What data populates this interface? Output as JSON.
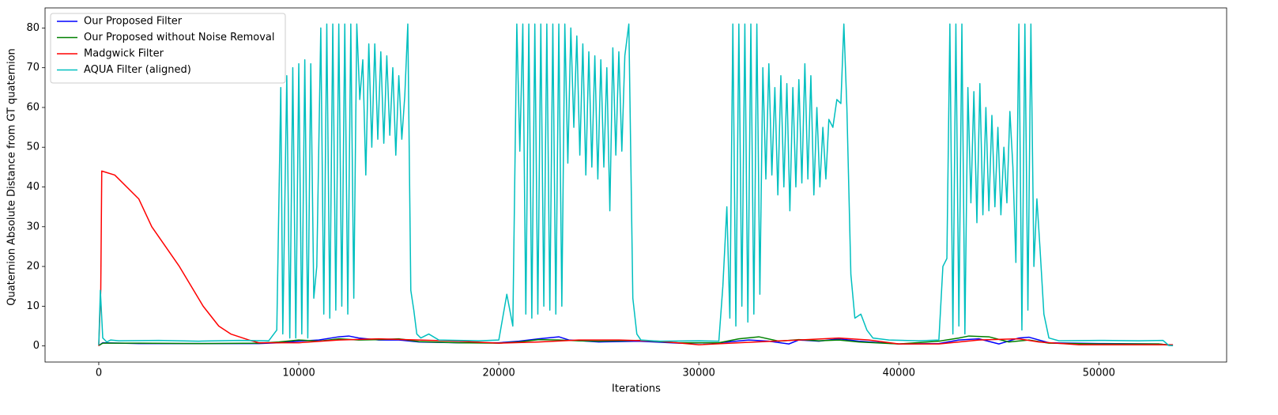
{
  "chart_data": {
    "type": "line",
    "xlabel": "Iterations",
    "ylabel": "Quaternion Absolute Distance from GT quaternion",
    "xlim": [
      -2685,
      56385
    ],
    "ylim": [
      -4.05,
      85.05
    ],
    "xticks": [
      0,
      10000,
      20000,
      30000,
      40000,
      50000
    ],
    "yticks": [
      0,
      10,
      20,
      30,
      40,
      50,
      60,
      70,
      80
    ],
    "legend": "upper-left",
    "series": [
      {
        "name": "Our Proposed Filter",
        "color": "#0000ff",
        "x": [
          0,
          200,
          2000,
          5000,
          8000,
          9000,
          10000,
          11000,
          12000,
          12500,
          13000,
          14000,
          15000,
          16000,
          18000,
          20000,
          21000,
          22000,
          23000,
          23500,
          25000,
          27000,
          29000,
          31000,
          32500,
          33500,
          34500,
          35000,
          36000,
          37000,
          38000,
          40000,
          42000,
          43000,
          44000,
          45000,
          46000,
          46500,
          47500,
          50000,
          53000,
          53700
        ],
        "values": [
          0.1,
          0.8,
          0.6,
          0.6,
          0.6,
          0.8,
          1.2,
          1.5,
          2.3,
          2.5,
          2,
          1.5,
          1.5,
          1,
          0.8,
          0.8,
          1.2,
          1.8,
          2.3,
          1.5,
          1,
          1.2,
          0.7,
          0.8,
          1.5,
          1.2,
          0.5,
          1.5,
          1.2,
          1.8,
          1.2,
          0.5,
          0.6,
          1.5,
          1.8,
          0.5,
          2,
          2.2,
          0.8,
          0.6,
          0.5,
          0.1
        ]
      },
      {
        "name": "Our Proposed without Noise Removal",
        "color": "#008000",
        "x": [
          0,
          200,
          2000,
          5000,
          8000,
          9000,
          10000,
          11000,
          12000,
          13000,
          14000,
          15000,
          16000,
          18000,
          20000,
          21000,
          22000,
          23000,
          24000,
          25000,
          27000,
          29000,
          31000,
          32000,
          33000,
          34000,
          35000,
          36000,
          37000,
          38000,
          40000,
          42000,
          43000,
          43500,
          44500,
          45500,
          46500,
          47500,
          50000,
          53000,
          53700
        ],
        "values": [
          0.1,
          0.7,
          0.7,
          0.6,
          0.7,
          1,
          1.5,
          1.2,
          1.8,
          1.5,
          1.6,
          1.8,
          1.1,
          0.8,
          0.7,
          1,
          1.6,
          1.5,
          1.3,
          1.2,
          1.4,
          0.8,
          0.8,
          1.8,
          2.3,
          1.2,
          1.6,
          1.3,
          1.5,
          1,
          0.5,
          1.2,
          2,
          2.5,
          2.3,
          1,
          1.5,
          0.7,
          0.5,
          0.5,
          0.1
        ]
      },
      {
        "name": "Madgwick Filter",
        "color": "#ff0000",
        "x": [
          0,
          100,
          150,
          800,
          1000,
          2000,
          2650,
          4030,
          5220,
          6000,
          6600,
          7500,
          8000,
          10000,
          12000,
          14000,
          16000,
          18000,
          20000,
          22000,
          24000,
          26000,
          28000,
          30000,
          32000,
          35000,
          37000,
          38500,
          40000,
          42000,
          44000,
          46000,
          47000,
          49000,
          53000,
          53700
        ],
        "values": [
          0,
          14,
          44,
          43,
          42,
          37,
          30,
          20,
          10,
          5,
          3,
          1.5,
          0.8,
          0.8,
          1.5,
          1.8,
          1.5,
          1.2,
          0.7,
          1,
          1.5,
          1.5,
          1.2,
          0.3,
          0.8,
          1.5,
          2,
          1.5,
          0.5,
          0.5,
          1.5,
          1.8,
          1,
          0.3,
          0.3,
          0.3
        ]
      },
      {
        "name": "AQUA Filter (aligned)",
        "color": "#00bfbf",
        "x": [
          0,
          80,
          200,
          400,
          600,
          1000,
          3000,
          5000,
          7000,
          8500,
          8900,
          9100,
          9200,
          9400,
          9550,
          9700,
          9850,
          10000,
          10150,
          10300,
          10450,
          10600,
          10750,
          10900,
          11100,
          11250,
          11400,
          11550,
          11700,
          11850,
          12000,
          12150,
          12300,
          12450,
          12600,
          12750,
          12900,
          13050,
          13200,
          13350,
          13500,
          13650,
          13800,
          13950,
          14100,
          14250,
          14400,
          14550,
          14700,
          14850,
          15000,
          15150,
          15300,
          15450,
          15600,
          15750,
          15900,
          16100,
          16500,
          17000,
          19000,
          20000,
          20400,
          20700,
          20900,
          21050,
          21200,
          21350,
          21500,
          21650,
          21800,
          21950,
          22100,
          22250,
          22400,
          22550,
          22700,
          22850,
          23000,
          23150,
          23300,
          23450,
          23600,
          23750,
          23900,
          24050,
          24200,
          24350,
          24500,
          24650,
          24800,
          24950,
          25100,
          25250,
          25400,
          25550,
          25700,
          25850,
          26000,
          26150,
          26300,
          26500,
          26700,
          26900,
          27100,
          28000,
          30000,
          31000,
          31200,
          31400,
          31550,
          31700,
          31850,
          32000,
          32150,
          32300,
          32450,
          32600,
          32750,
          32900,
          33050,
          33200,
          33350,
          33500,
          33650,
          33800,
          33950,
          34100,
          34250,
          34400,
          34550,
          34700,
          34850,
          35000,
          35150,
          35300,
          35450,
          35600,
          35750,
          35900,
          36050,
          36200,
          36350,
          36500,
          36700,
          36900,
          37100,
          37250,
          37400,
          37600,
          37800,
          38100,
          38400,
          38700,
          39500,
          41000,
          42000,
          42200,
          42400,
          42550,
          42700,
          42850,
          43000,
          43150,
          43300,
          43450,
          43600,
          43750,
          43900,
          44050,
          44200,
          44350,
          44500,
          44650,
          44800,
          44950,
          45100,
          45250,
          45400,
          45550,
          45700,
          45850,
          46000,
          46150,
          46300,
          46450,
          46600,
          46750,
          46900,
          47050,
          47250,
          47500,
          48000,
          50000,
          52000,
          53200,
          53500,
          53700
        ],
        "values": [
          0.2,
          14,
          2,
          1,
          1.5,
          1.3,
          1.4,
          1.2,
          1.4,
          1.3,
          4,
          65,
          3,
          68,
          2,
          70,
          2,
          71,
          3,
          72,
          2,
          71,
          12,
          20,
          80,
          8,
          81,
          7,
          81,
          9,
          81,
          10,
          81,
          8,
          81,
          12,
          81,
          62,
          72,
          43,
          76,
          50,
          76,
          52,
          74,
          51,
          73,
          53,
          70,
          48,
          68,
          52,
          63,
          81,
          14,
          9,
          3,
          2,
          3,
          1.5,
          1.3,
          1.5,
          13,
          5,
          81,
          49,
          81,
          8,
          81,
          7,
          81,
          8,
          81,
          10,
          81,
          9,
          81,
          8,
          81,
          10,
          81,
          46,
          80,
          55,
          78,
          48,
          76,
          43,
          74,
          45,
          73,
          42,
          72,
          45,
          70,
          34,
          75,
          48,
          74,
          49,
          73,
          81,
          12,
          3,
          1.5,
          1.2,
          1.3,
          1.2,
          15,
          35,
          7,
          81,
          5,
          81,
          10,
          81,
          6,
          81,
          8,
          81,
          13,
          70,
          42,
          71,
          43,
          65,
          38,
          68,
          40,
          66,
          34,
          65,
          40,
          67,
          41,
          71,
          42,
          68,
          38,
          60,
          40,
          55,
          42,
          57,
          55,
          62,
          61,
          81,
          60,
          18,
          7,
          8,
          4,
          2,
          1.5,
          1.3,
          1.5,
          20,
          22,
          81,
          3,
          81,
          5,
          81,
          3,
          65,
          36,
          64,
          31,
          66,
          33,
          60,
          34,
          58,
          35,
          55,
          33,
          50,
          36,
          59,
          45,
          21,
          81,
          4,
          81,
          9,
          81,
          20,
          37,
          25,
          8,
          2,
          1.3,
          1.4,
          1.3,
          1.4,
          0.1,
          0.1
        ]
      }
    ]
  }
}
